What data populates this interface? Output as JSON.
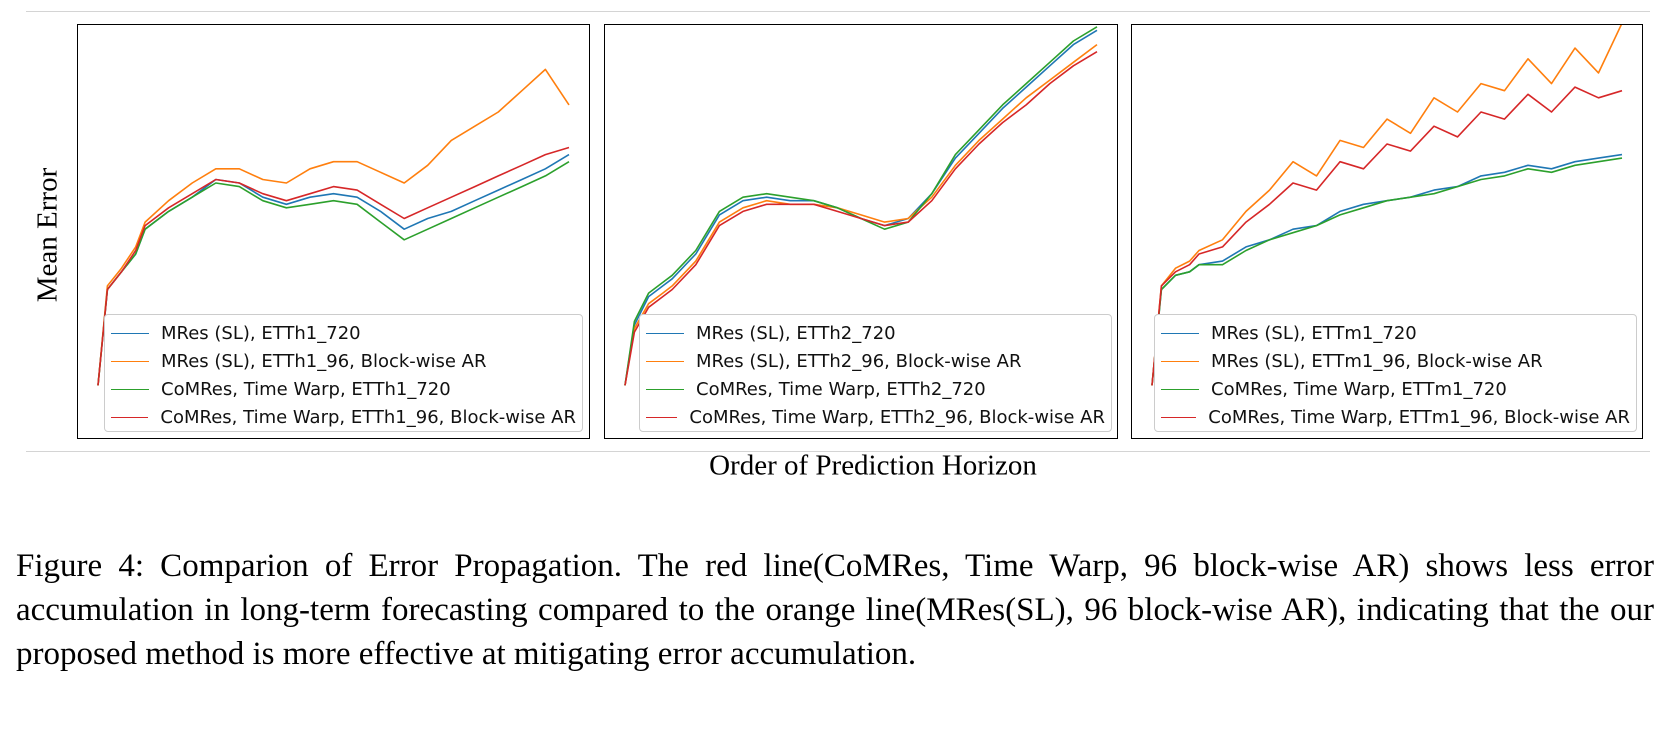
{
  "figure": {
    "ylabel": "Mean Error",
    "xlabel": "Order of Prediction Horizon",
    "caption": "Figure 4: Comparion of Error Propagation. The red line(CoMRes, Time Warp, 96 block-wise AR) shows less error accumulation in long-term forecasting compared to the orange line(MRes(SL), 96 block-wise AR), indicating that the our proposed method is more effective at mitigating error accumulation."
  },
  "colors": {
    "blue": "#1f77b4",
    "orange": "#ff7f0e",
    "green": "#2ca02c",
    "red": "#d62728"
  },
  "chart_data": [
    {
      "type": "line",
      "dataset": "ETTh1",
      "x": [
        0,
        0.02,
        0.05,
        0.08,
        0.1,
        0.15,
        0.2,
        0.25,
        0.3,
        0.35,
        0.4,
        0.45,
        0.5,
        0.55,
        0.6,
        0.65,
        0.7,
        0.75,
        0.8,
        0.85,
        0.9,
        0.95,
        1.0
      ],
      "series": [
        {
          "name": "MRes (SL), ETTh1_720",
          "color": "blue",
          "values": [
            0.03,
            0.3,
            0.35,
            0.4,
            0.47,
            0.52,
            0.56,
            0.61,
            0.6,
            0.56,
            0.54,
            0.56,
            0.57,
            0.56,
            0.52,
            0.47,
            0.5,
            0.52,
            0.55,
            0.58,
            0.61,
            0.64,
            0.68
          ]
        },
        {
          "name": "MRes (SL), ETTh1_96, Block-wise AR",
          "color": "orange",
          "values": [
            0.03,
            0.31,
            0.36,
            0.42,
            0.49,
            0.55,
            0.6,
            0.64,
            0.64,
            0.61,
            0.6,
            0.64,
            0.66,
            0.66,
            0.63,
            0.6,
            0.65,
            0.72,
            0.76,
            0.8,
            0.86,
            0.92,
            0.82
          ]
        },
        {
          "name": "CoMRes, Time Warp, ETTh1_720",
          "color": "green",
          "values": [
            0.03,
            0.3,
            0.35,
            0.4,
            0.47,
            0.52,
            0.56,
            0.6,
            0.59,
            0.55,
            0.53,
            0.54,
            0.55,
            0.54,
            0.49,
            0.44,
            0.47,
            0.5,
            0.53,
            0.56,
            0.59,
            0.62,
            0.66
          ]
        },
        {
          "name": "CoMRes, Time Warp, ETTh1_96, Block-wise AR",
          "color": "red",
          "values": [
            0.03,
            0.3,
            0.35,
            0.41,
            0.48,
            0.53,
            0.57,
            0.61,
            0.6,
            0.57,
            0.55,
            0.57,
            0.59,
            0.58,
            0.54,
            0.5,
            0.53,
            0.56,
            0.59,
            0.62,
            0.65,
            0.68,
            0.7
          ]
        }
      ]
    },
    {
      "type": "line",
      "dataset": "ETTh2",
      "x": [
        0,
        0.02,
        0.05,
        0.08,
        0.1,
        0.15,
        0.2,
        0.25,
        0.3,
        0.35,
        0.4,
        0.45,
        0.5,
        0.55,
        0.6,
        0.65,
        0.7,
        0.75,
        0.8,
        0.85,
        0.9,
        0.95,
        1.0
      ],
      "series": [
        {
          "name": "MRes (SL), ETTh2_720",
          "color": "blue",
          "values": [
            0.03,
            0.2,
            0.28,
            0.31,
            0.33,
            0.4,
            0.51,
            0.55,
            0.56,
            0.55,
            0.55,
            0.53,
            0.5,
            0.48,
            0.5,
            0.57,
            0.67,
            0.74,
            0.81,
            0.87,
            0.93,
            0.99,
            1.03
          ]
        },
        {
          "name": "MRes (SL), ETTh2_96, Block-wise AR",
          "color": "orange",
          "values": [
            0.03,
            0.19,
            0.26,
            0.29,
            0.31,
            0.38,
            0.49,
            0.53,
            0.55,
            0.54,
            0.54,
            0.53,
            0.51,
            0.49,
            0.5,
            0.56,
            0.65,
            0.72,
            0.78,
            0.84,
            0.89,
            0.94,
            0.99
          ]
        },
        {
          "name": "CoMRes, Time Warp, ETTh2_720",
          "color": "green",
          "values": [
            0.03,
            0.21,
            0.29,
            0.32,
            0.34,
            0.41,
            0.52,
            0.56,
            0.57,
            0.56,
            0.55,
            0.53,
            0.5,
            0.47,
            0.49,
            0.57,
            0.68,
            0.75,
            0.82,
            0.88,
            0.94,
            1.0,
            1.04
          ]
        },
        {
          "name": "CoMRes, Time Warp, ETTh2_96, Block-wise AR",
          "color": "red",
          "values": [
            0.03,
            0.18,
            0.25,
            0.28,
            0.3,
            0.37,
            0.48,
            0.52,
            0.54,
            0.54,
            0.54,
            0.52,
            0.5,
            0.48,
            0.49,
            0.55,
            0.64,
            0.71,
            0.77,
            0.82,
            0.88,
            0.93,
            0.97
          ]
        }
      ]
    },
    {
      "type": "line",
      "dataset": "ETTm1",
      "x": [
        0,
        0.02,
        0.05,
        0.08,
        0.1,
        0.15,
        0.2,
        0.25,
        0.3,
        0.35,
        0.4,
        0.45,
        0.5,
        0.55,
        0.6,
        0.65,
        0.7,
        0.75,
        0.8,
        0.85,
        0.9,
        0.95,
        1.0
      ],
      "series": [
        {
          "name": "MRes (SL), ETTm1_720",
          "color": "blue",
          "values": [
            0.03,
            0.3,
            0.34,
            0.35,
            0.37,
            0.38,
            0.42,
            0.44,
            0.47,
            0.48,
            0.52,
            0.54,
            0.55,
            0.56,
            0.58,
            0.59,
            0.62,
            0.63,
            0.65,
            0.64,
            0.66,
            0.67,
            0.68
          ]
        },
        {
          "name": "MRes (SL), ETTm1_96, Block-wise AR",
          "color": "orange",
          "values": [
            0.03,
            0.31,
            0.36,
            0.38,
            0.41,
            0.44,
            0.52,
            0.58,
            0.66,
            0.62,
            0.72,
            0.7,
            0.78,
            0.74,
            0.84,
            0.8,
            0.88,
            0.86,
            0.95,
            0.88,
            0.98,
            0.91,
            1.05
          ]
        },
        {
          "name": "CoMRes, Time Warp, ETTm1_720",
          "color": "green",
          "values": [
            0.03,
            0.3,
            0.34,
            0.35,
            0.37,
            0.37,
            0.41,
            0.44,
            0.46,
            0.48,
            0.51,
            0.53,
            0.55,
            0.56,
            0.57,
            0.59,
            0.61,
            0.62,
            0.64,
            0.63,
            0.65,
            0.66,
            0.67
          ]
        },
        {
          "name": "CoMRes, Time Warp, ETTm1_96, Block-wise AR",
          "color": "red",
          "values": [
            0.03,
            0.31,
            0.35,
            0.37,
            0.4,
            0.42,
            0.49,
            0.54,
            0.6,
            0.58,
            0.66,
            0.64,
            0.71,
            0.69,
            0.76,
            0.73,
            0.8,
            0.78,
            0.85,
            0.8,
            0.87,
            0.84,
            0.86
          ]
        }
      ]
    }
  ]
}
